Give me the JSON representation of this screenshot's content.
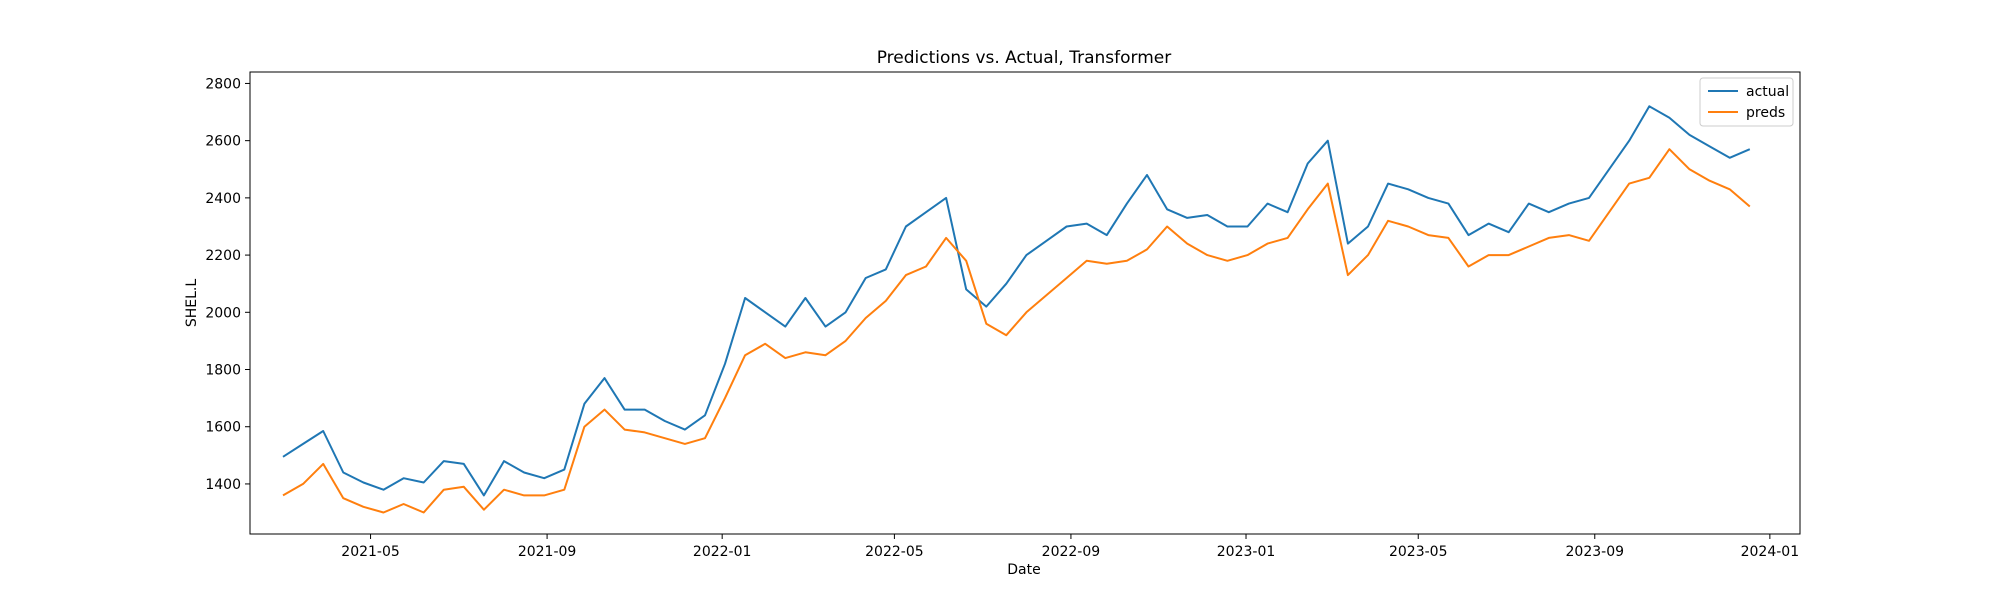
{
  "chart_data": {
    "type": "line",
    "title": "Predictions vs. Actual, Transformer",
    "xlabel": "Date",
    "ylabel": "SHEL.L",
    "xlim": [
      "2021-02-06",
      "2024-01-22"
    ],
    "ylim": [
      1225,
      2840
    ],
    "x_ticks": [
      "2021-05",
      "2021-09",
      "2022-01",
      "2022-05",
      "2022-09",
      "2023-01",
      "2023-05",
      "2023-09",
      "2024-01"
    ],
    "y_ticks": [
      1400,
      1600,
      1800,
      2000,
      2200,
      2400,
      2600,
      2800
    ],
    "grid": false,
    "legend_position": "top-right",
    "x": [
      "2021-03-01",
      "2021-03-15",
      "2021-03-29",
      "2021-04-12",
      "2021-04-26",
      "2021-05-10",
      "2021-05-24",
      "2021-06-07",
      "2021-06-21",
      "2021-07-05",
      "2021-07-19",
      "2021-08-02",
      "2021-08-16",
      "2021-08-30",
      "2021-09-13",
      "2021-09-27",
      "2021-10-11",
      "2021-10-25",
      "2021-11-08",
      "2021-11-22",
      "2021-12-06",
      "2021-12-20",
      "2022-01-03",
      "2022-01-17",
      "2022-01-31",
      "2022-02-14",
      "2022-02-28",
      "2022-03-14",
      "2022-03-28",
      "2022-04-11",
      "2022-04-25",
      "2022-05-09",
      "2022-05-23",
      "2022-06-06",
      "2022-06-20",
      "2022-07-04",
      "2022-07-18",
      "2022-08-01",
      "2022-08-15",
      "2022-08-29",
      "2022-09-12",
      "2022-09-26",
      "2022-10-10",
      "2022-10-24",
      "2022-11-07",
      "2022-11-21",
      "2022-12-05",
      "2022-12-19",
      "2023-01-02",
      "2023-01-16",
      "2023-01-30",
      "2023-02-13",
      "2023-02-27",
      "2023-03-13",
      "2023-03-27",
      "2023-04-10",
      "2023-04-24",
      "2023-05-08",
      "2023-05-22",
      "2023-06-05",
      "2023-06-19",
      "2023-07-03",
      "2023-07-17",
      "2023-07-31",
      "2023-08-14",
      "2023-08-28",
      "2023-09-11",
      "2023-09-25",
      "2023-10-09",
      "2023-10-23",
      "2023-11-06",
      "2023-11-20",
      "2023-12-04",
      "2023-12-18"
    ],
    "series": [
      {
        "name": "actual",
        "color": "#1f77b4",
        "values": [
          1495,
          1540,
          1585,
          1440,
          1405,
          1380,
          1420,
          1405,
          1480,
          1470,
          1360,
          1480,
          1440,
          1420,
          1450,
          1680,
          1770,
          1660,
          1660,
          1620,
          1590,
          1640,
          1820,
          2050,
          2000,
          1950,
          2050,
          1950,
          2000,
          2120,
          2150,
          2300,
          2350,
          2400,
          2080,
          2020,
          2100,
          2200,
          2250,
          2300,
          2310,
          2270,
          2380,
          2480,
          2360,
          2330,
          2340,
          2300,
          2300,
          2380,
          2350,
          2520,
          2600,
          2240,
          2300,
          2450,
          2430,
          2400,
          2380,
          2270,
          2310,
          2280,
          2380,
          2350,
          2380,
          2400,
          2500,
          2600,
          2720,
          2680,
          2620,
          2580,
          2540,
          2570
        ]
      },
      {
        "name": "preds",
        "color": "#ff7f0e",
        "values": [
          1360,
          1400,
          1470,
          1350,
          1320,
          1300,
          1330,
          1300,
          1380,
          1390,
          1310,
          1380,
          1360,
          1360,
          1380,
          1600,
          1660,
          1590,
          1580,
          1560,
          1540,
          1560,
          1700,
          1850,
          1890,
          1840,
          1860,
          1850,
          1900,
          1980,
          2040,
          2130,
          2160,
          2260,
          2180,
          1960,
          1920,
          2000,
          2060,
          2120,
          2180,
          2170,
          2180,
          2220,
          2300,
          2240,
          2200,
          2180,
          2200,
          2240,
          2260,
          2360,
          2450,
          2130,
          2200,
          2320,
          2300,
          2270,
          2260,
          2160,
          2200,
          2200,
          2230,
          2260,
          2270,
          2250,
          2350,
          2450,
          2470,
          2570,
          2500,
          2460,
          2430,
          2370
        ]
      }
    ]
  }
}
